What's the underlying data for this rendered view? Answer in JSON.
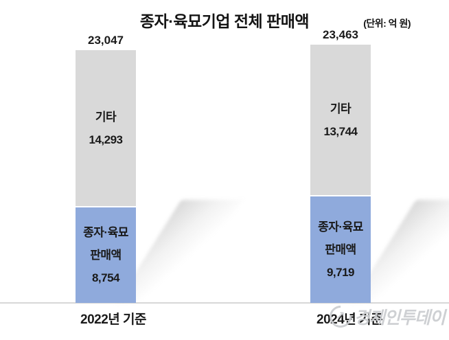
{
  "title": "종자·육묘기업 전체 판매액",
  "unit_label": "(단위: 억 원)",
  "watermark": {
    "icon": "up-arrow-circle-icon",
    "text": "경제인투데이"
  },
  "chart_data": {
    "type": "bar",
    "stacked": true,
    "title": "종자·육묘기업 전체 판매액",
    "unit": "억 원",
    "categories": [
      "2022년 기준",
      "2024년 기준"
    ],
    "series": [
      {
        "name": "기타",
        "color": "#d9d9d9",
        "values": [
          14293,
          13744
        ]
      },
      {
        "name": "종자·육묘 판매액",
        "color": "#8faadc",
        "values": [
          8754,
          9719
        ]
      }
    ],
    "totals": [
      23047,
      23463
    ],
    "ylim": [
      0,
      23463
    ],
    "grid": false,
    "legend_position": "none",
    "value_labels": "inside segments and above bar totals",
    "bars": [
      {
        "category": "2022년 기준",
        "total": 23047,
        "total_label": "23,047",
        "segments": [
          {
            "name": "기타",
            "value": 14293,
            "color": "#d9d9d9",
            "label_lines": [
              "기타",
              "14,293"
            ]
          },
          {
            "name": "종자·육묘 판매액",
            "value": 8754,
            "color": "#8faadc",
            "label_lines": [
              "종자·육묘",
              "판매액",
              "8,754"
            ]
          }
        ]
      },
      {
        "category": "2024년 기준",
        "total": 23463,
        "total_label": "23,463",
        "segments": [
          {
            "name": "기타",
            "value": 13744,
            "color": "#d9d9d9",
            "label_lines": [
              "기타",
              "13,744"
            ]
          },
          {
            "name": "종자·육묘 판매액",
            "value": 9719,
            "color": "#8faadc",
            "label_lines": [
              "종자·육묘",
              "판매액",
              "9,719"
            ]
          }
        ]
      }
    ]
  }
}
